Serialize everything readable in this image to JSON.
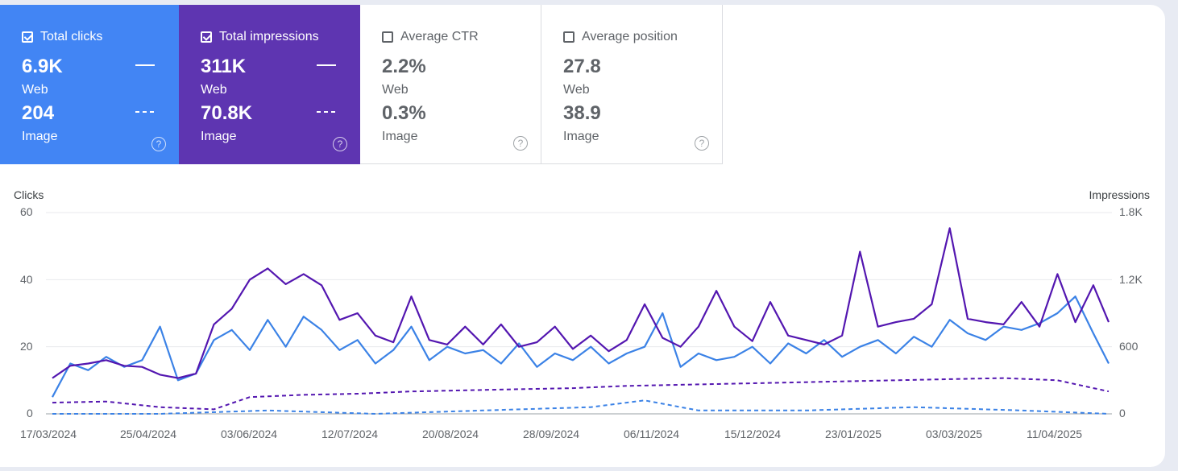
{
  "cards": [
    {
      "key": "clicks",
      "label": "Total clicks",
      "checked": true,
      "web_value": "6.9K",
      "web_label": "Web",
      "image_value": "204",
      "image_label": "Image"
    },
    {
      "key": "impr",
      "label": "Total impressions",
      "checked": true,
      "web_value": "311K",
      "web_label": "Web",
      "image_value": "70.8K",
      "image_label": "Image"
    },
    {
      "key": "ctr",
      "label": "Average CTR",
      "checked": false,
      "web_value": "2.2%",
      "web_label": "Web",
      "image_value": "0.3%",
      "image_label": "Image"
    },
    {
      "key": "pos",
      "label": "Average position",
      "checked": false,
      "web_value": "27.8",
      "web_label": "Web",
      "image_value": "38.9",
      "image_label": "Image"
    }
  ],
  "chart": {
    "left_axis_title": "Clicks",
    "right_axis_title": "Impressions"
  },
  "colors": {
    "clicks": "#4285f4",
    "impressions": "#5e35b1",
    "clicks_line": "#3b82e6",
    "impressions_line": "#5316b0"
  },
  "chart_data": {
    "type": "line",
    "x_ticks": [
      "17/03/2024",
      "25/04/2024",
      "03/06/2024",
      "12/07/2024",
      "20/08/2024",
      "28/09/2024",
      "06/11/2024",
      "15/12/2024",
      "23/01/2025",
      "03/03/2025",
      "11/04/2025"
    ],
    "y_left": {
      "label": "Clicks",
      "ticks": [
        "0",
        "20",
        "40",
        "60"
      ],
      "range": [
        0,
        60
      ]
    },
    "y_right": {
      "label": "Impressions",
      "ticks": [
        "0",
        "600",
        "1.2K",
        "1.8K"
      ],
      "range": [
        0,
        1800
      ]
    },
    "x_range": [
      "2024-03-17",
      "2025-05-03"
    ],
    "grid": true,
    "series": [
      {
        "axis": "left",
        "style": "solid",
        "color": "#3b82e6",
        "points": [
          [
            "2024-03-17",
            5
          ],
          [
            "2024-03-24",
            15
          ],
          [
            "2024-03-31",
            13
          ],
          [
            "2024-04-07",
            17
          ],
          [
            "2024-04-14",
            14
          ],
          [
            "2024-04-21",
            16
          ],
          [
            "2024-04-28",
            26
          ],
          [
            "2024-05-05",
            10
          ],
          [
            "2024-05-12",
            12
          ],
          [
            "2024-05-19",
            22
          ],
          [
            "2024-05-26",
            25
          ],
          [
            "2024-06-02",
            19
          ],
          [
            "2024-06-09",
            28
          ],
          [
            "2024-06-16",
            20
          ],
          [
            "2024-06-23",
            29
          ],
          [
            "2024-06-30",
            25
          ],
          [
            "2024-07-07",
            19
          ],
          [
            "2024-07-14",
            22
          ],
          [
            "2024-07-21",
            15
          ],
          [
            "2024-07-28",
            19
          ],
          [
            "2024-08-04",
            26
          ],
          [
            "2024-08-11",
            16
          ],
          [
            "2024-08-18",
            20
          ],
          [
            "2024-08-25",
            18
          ],
          [
            "2024-09-01",
            19
          ],
          [
            "2024-09-08",
            15
          ],
          [
            "2024-09-15",
            21
          ],
          [
            "2024-09-22",
            14
          ],
          [
            "2024-09-29",
            18
          ],
          [
            "2024-10-06",
            16
          ],
          [
            "2024-10-13",
            20
          ],
          [
            "2024-10-20",
            15
          ],
          [
            "2024-10-27",
            18
          ],
          [
            "2024-11-03",
            20
          ],
          [
            "2024-11-10",
            30
          ],
          [
            "2024-11-17",
            14
          ],
          [
            "2024-11-24",
            18
          ],
          [
            "2024-12-01",
            16
          ],
          [
            "2024-12-08",
            17
          ],
          [
            "2024-12-15",
            20
          ],
          [
            "2024-12-22",
            15
          ],
          [
            "2024-12-29",
            21
          ],
          [
            "2025-01-05",
            18
          ],
          [
            "2025-01-12",
            22
          ],
          [
            "2025-01-19",
            17
          ],
          [
            "2025-01-26",
            20
          ],
          [
            "2025-02-02",
            22
          ],
          [
            "2025-02-09",
            18
          ],
          [
            "2025-02-16",
            23
          ],
          [
            "2025-02-23",
            20
          ],
          [
            "2025-03-02",
            28
          ],
          [
            "2025-03-09",
            24
          ],
          [
            "2025-03-16",
            22
          ],
          [
            "2025-03-23",
            26
          ],
          [
            "2025-03-30",
            25
          ],
          [
            "2025-04-06",
            27
          ],
          [
            "2025-04-13",
            30
          ],
          [
            "2025-04-20",
            35
          ],
          [
            "2025-04-27",
            24
          ],
          [
            "2025-05-03",
            15
          ]
        ]
      },
      {
        "axis": "right",
        "style": "solid",
        "color": "#5316b0",
        "points": [
          [
            "2024-03-17",
            320
          ],
          [
            "2024-03-24",
            430
          ],
          [
            "2024-03-31",
            450
          ],
          [
            "2024-04-07",
            480
          ],
          [
            "2024-04-14",
            430
          ],
          [
            "2024-04-21",
            420
          ],
          [
            "2024-04-28",
            350
          ],
          [
            "2024-05-05",
            320
          ],
          [
            "2024-05-12",
            360
          ],
          [
            "2024-05-19",
            800
          ],
          [
            "2024-05-26",
            940
          ],
          [
            "2024-06-02",
            1200
          ],
          [
            "2024-06-09",
            1300
          ],
          [
            "2024-06-16",
            1160
          ],
          [
            "2024-06-23",
            1250
          ],
          [
            "2024-06-30",
            1150
          ],
          [
            "2024-07-07",
            840
          ],
          [
            "2024-07-14",
            900
          ],
          [
            "2024-07-21",
            700
          ],
          [
            "2024-07-28",
            640
          ],
          [
            "2024-08-04",
            1050
          ],
          [
            "2024-08-11",
            660
          ],
          [
            "2024-08-18",
            620
          ],
          [
            "2024-08-25",
            780
          ],
          [
            "2024-09-01",
            620
          ],
          [
            "2024-09-08",
            800
          ],
          [
            "2024-09-15",
            600
          ],
          [
            "2024-09-22",
            640
          ],
          [
            "2024-09-29",
            780
          ],
          [
            "2024-10-06",
            580
          ],
          [
            "2024-10-13",
            700
          ],
          [
            "2024-10-20",
            560
          ],
          [
            "2024-10-27",
            660
          ],
          [
            "2024-11-03",
            980
          ],
          [
            "2024-11-10",
            680
          ],
          [
            "2024-11-17",
            600
          ],
          [
            "2024-11-24",
            780
          ],
          [
            "2024-12-01",
            1100
          ],
          [
            "2024-12-08",
            780
          ],
          [
            "2024-12-15",
            650
          ],
          [
            "2024-12-22",
            1000
          ],
          [
            "2024-12-29",
            700
          ],
          [
            "2025-01-05",
            660
          ],
          [
            "2025-01-12",
            620
          ],
          [
            "2025-01-19",
            700
          ],
          [
            "2025-01-26",
            1450
          ],
          [
            "2025-02-02",
            780
          ],
          [
            "2025-02-09",
            820
          ],
          [
            "2025-02-16",
            850
          ],
          [
            "2025-02-23",
            980
          ],
          [
            "2025-03-02",
            1660
          ],
          [
            "2025-03-09",
            850
          ],
          [
            "2025-03-16",
            820
          ],
          [
            "2025-03-23",
            800
          ],
          [
            "2025-03-30",
            1000
          ],
          [
            "2025-04-06",
            780
          ],
          [
            "2025-04-13",
            1250
          ],
          [
            "2025-04-20",
            820
          ],
          [
            "2025-04-27",
            1150
          ],
          [
            "2025-05-03",
            820
          ]
        ]
      },
      {
        "axis": "right",
        "style": "dashed",
        "color": "#5316b0",
        "points": [
          [
            "2024-03-17",
            100
          ],
          [
            "2024-04-07",
            110
          ],
          [
            "2024-04-28",
            60
          ],
          [
            "2024-05-19",
            40
          ],
          [
            "2024-06-02",
            150
          ],
          [
            "2024-06-23",
            170
          ],
          [
            "2024-07-14",
            180
          ],
          [
            "2024-08-04",
            200
          ],
          [
            "2024-08-25",
            210
          ],
          [
            "2024-09-15",
            220
          ],
          [
            "2024-10-06",
            230
          ],
          [
            "2024-10-27",
            250
          ],
          [
            "2024-11-17",
            260
          ],
          [
            "2024-12-08",
            270
          ],
          [
            "2024-12-29",
            280
          ],
          [
            "2025-01-19",
            290
          ],
          [
            "2025-02-09",
            300
          ],
          [
            "2025-03-02",
            310
          ],
          [
            "2025-03-23",
            320
          ],
          [
            "2025-04-13",
            300
          ],
          [
            "2025-05-03",
            200
          ]
        ]
      },
      {
        "axis": "left",
        "style": "dashed",
        "color": "#3b82e6",
        "points": [
          [
            "2024-03-17",
            0
          ],
          [
            "2024-04-28",
            0
          ],
          [
            "2024-06-09",
            1
          ],
          [
            "2024-07-21",
            0
          ],
          [
            "2024-09-01",
            1
          ],
          [
            "2024-10-13",
            2
          ],
          [
            "2024-11-03",
            4
          ],
          [
            "2024-11-24",
            1
          ],
          [
            "2025-01-05",
            1
          ],
          [
            "2025-02-16",
            2
          ],
          [
            "2025-03-30",
            1
          ],
          [
            "2025-05-03",
            0
          ]
        ]
      }
    ]
  }
}
